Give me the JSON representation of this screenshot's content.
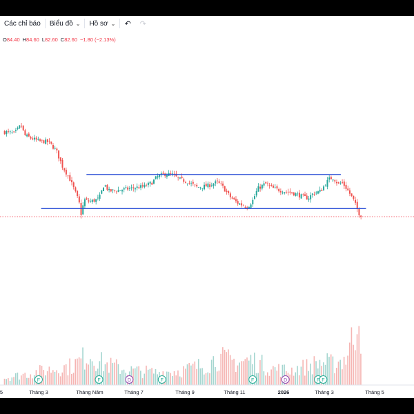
{
  "toolbar": {
    "indicators_label": "Các chỉ báo",
    "chart_label": "Biểu đồ",
    "profile_label": "Hồ sơ",
    "undo_icon": "undo-icon",
    "redo_icon": "redo-icon"
  },
  "ohlc": {
    "open_label": "O",
    "open": "84.40",
    "high_label": "H",
    "high": "84.60",
    "low_label": "L",
    "low": "82.60",
    "close_label": "C",
    "close": "82.60",
    "change": "−1.80 (−2.13%)"
  },
  "colors": {
    "up": "#26a69a",
    "down": "#ef5350",
    "up_volume": "#a5d6d0",
    "down_volume": "#f5b5b3",
    "trendline": "#2a4fd6",
    "price_line": "#f23645"
  },
  "chart_data": {
    "type": "candlestick",
    "x_tick_labels": [
      "5",
      "Tháng 3",
      "Tháng Năm",
      "Tháng 7",
      "Tháng 9",
      "Tháng 11",
      "2026",
      "Tháng 3",
      "Tháng 5"
    ],
    "last_close": 82.6,
    "channel": {
      "upper": 91.5,
      "lower": 84.3
    },
    "events": [
      {
        "label": "F",
        "month": 2.3,
        "type": "dividend"
      },
      {
        "label": "F",
        "month": 4.7,
        "type": "dividend"
      },
      {
        "label": "D",
        "month": 5.9,
        "type": "dividend"
      },
      {
        "label": "F",
        "month": 7.2,
        "type": "dividend"
      },
      {
        "label": "F",
        "month": 10.8,
        "type": "dividend"
      },
      {
        "label": "D",
        "month": 12.1,
        "type": "dividend"
      },
      {
        "label": "F",
        "month": 13.4,
        "type": "dividend"
      },
      {
        "label": "F",
        "month": 13.6,
        "type": "dividend"
      }
    ],
    "price_anchors": [
      [
        1.0,
        100.5
      ],
      [
        1.35,
        100.2
      ],
      [
        1.6,
        102.0
      ],
      [
        1.75,
        99.8
      ],
      [
        2.0,
        99.2
      ],
      [
        2.3,
        98.6
      ],
      [
        2.7,
        98.4
      ],
      [
        3.0,
        96.6
      ],
      [
        3.25,
        93.2
      ],
      [
        3.5,
        91.0
      ],
      [
        3.7,
        88.5
      ],
      [
        3.9,
        85.8
      ],
      [
        4.0,
        82.8
      ],
      [
        4.1,
        86.2
      ],
      [
        4.3,
        85.8
      ],
      [
        4.5,
        86.0
      ],
      [
        4.7,
        86.4
      ],
      [
        4.9,
        89.5
      ],
      [
        5.1,
        88.0
      ],
      [
        5.5,
        88.2
      ],
      [
        6.0,
        88.6
      ],
      [
        6.5,
        89.0
      ],
      [
        6.8,
        89.8
      ],
      [
        7.0,
        91.0
      ],
      [
        7.3,
        91.6
      ],
      [
        7.6,
        91.5
      ],
      [
        7.9,
        90.5
      ],
      [
        8.2,
        90.0
      ],
      [
        8.6,
        88.8
      ],
      [
        9.0,
        89.1
      ],
      [
        9.4,
        89.9
      ],
      [
        9.6,
        89.0
      ],
      [
        9.9,
        86.8
      ],
      [
        10.2,
        85.5
      ],
      [
        10.6,
        84.6
      ],
      [
        10.8,
        86.0
      ],
      [
        11.0,
        88.5
      ],
      [
        11.3,
        89.6
      ],
      [
        11.6,
        88.6
      ],
      [
        12.0,
        88.0
      ],
      [
        12.4,
        87.6
      ],
      [
        12.8,
        86.8
      ],
      [
        13.0,
        86.5
      ],
      [
        13.2,
        87.5
      ],
      [
        13.5,
        88.0
      ],
      [
        13.7,
        89.6
      ],
      [
        13.85,
        90.6
      ],
      [
        14.0,
        90.8
      ],
      [
        14.2,
        89.5
      ],
      [
        14.35,
        89.8
      ],
      [
        14.55,
        88.4
      ],
      [
        14.8,
        86.2
      ],
      [
        15.0,
        83.5
      ],
      [
        15.1,
        82.6
      ]
    ],
    "volume_anchors": [
      [
        1.0,
        0.07
      ],
      [
        3.0,
        0.16
      ],
      [
        3.6,
        0.18
      ],
      [
        4.0,
        0.24
      ],
      [
        4.3,
        0.3
      ],
      [
        4.9,
        0.2
      ],
      [
        6.0,
        0.14
      ],
      [
        7.0,
        0.12
      ],
      [
        8.0,
        0.14
      ],
      [
        9.0,
        0.2
      ],
      [
        9.4,
        0.26
      ],
      [
        10.2,
        0.22
      ],
      [
        10.8,
        0.24
      ],
      [
        11.5,
        0.16
      ],
      [
        12.2,
        0.14
      ],
      [
        13.0,
        0.18
      ],
      [
        13.5,
        0.22
      ],
      [
        14.0,
        0.2
      ],
      [
        14.5,
        0.26
      ],
      [
        14.7,
        0.4
      ],
      [
        14.85,
        0.48
      ],
      [
        15.0,
        0.85
      ],
      [
        15.1,
        0.55
      ]
    ]
  }
}
